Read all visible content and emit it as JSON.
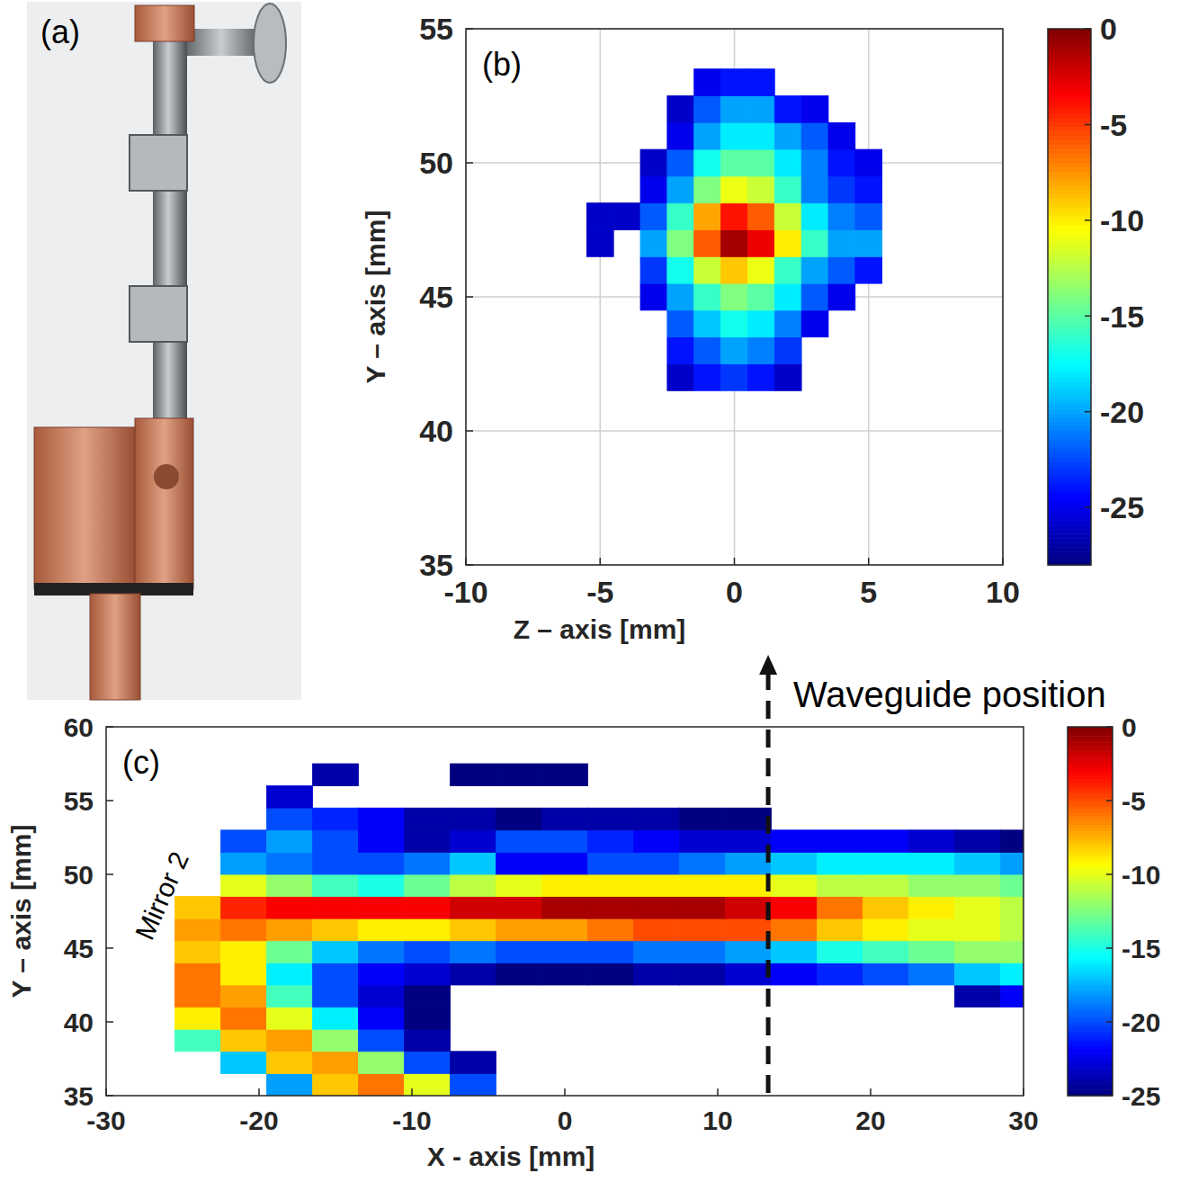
{
  "image_panel": {
    "label": "(a)"
  },
  "chart_data": [
    {
      "type": "heatmap",
      "panel_label": "(b)",
      "x_label": "Z – axis [mm]",
      "y_label": "Y – axis [mm]",
      "xlim": [
        -10,
        10
      ],
      "ylim": [
        35,
        55
      ],
      "xticks": [
        -10,
        -5,
        0,
        5,
        10
      ],
      "yticks": [
        35,
        40,
        45,
        50,
        55
      ],
      "grid": true,
      "x": [
        -5,
        -4,
        -3,
        -2,
        -1,
        0,
        1,
        2,
        3,
        4,
        5
      ],
      "y": [
        42,
        43,
        44,
        45,
        46,
        47,
        48,
        49,
        50,
        51,
        52,
        53
      ],
      "values": [
        [
          null,
          null,
          null,
          -26,
          -24,
          -23,
          -24,
          -26,
          null,
          null,
          null
        ],
        [
          null,
          null,
          null,
          -24,
          -22,
          -20,
          -21,
          -23,
          null,
          null,
          null
        ],
        [
          null,
          null,
          null,
          -22,
          -19,
          -17,
          -18,
          -21,
          -25,
          null,
          null
        ],
        [
          null,
          null,
          -25,
          -20,
          -16,
          -14,
          -15,
          -18,
          -22,
          -25,
          null
        ],
        [
          null,
          null,
          -23,
          -17,
          -12,
          -9,
          -11,
          -16,
          -20,
          -22,
          -24
        ],
        [
          -26,
          null,
          -20,
          -14,
          -6,
          -1,
          -3,
          -10,
          -16,
          -20,
          -20
        ],
        [
          -26,
          -26,
          -22,
          -16,
          -8,
          -4,
          -6,
          -12,
          -18,
          -21,
          -22
        ],
        [
          null,
          null,
          -25,
          -20,
          -14,
          -11,
          -12,
          -16,
          -21,
          -23,
          -24
        ],
        [
          null,
          null,
          -26,
          -22,
          -17,
          -15,
          -15,
          -18,
          -21,
          -24,
          -25
        ],
        [
          null,
          null,
          null,
          -25,
          -20,
          -18,
          -18,
          -20,
          -22,
          -25,
          null
        ],
        [
          null,
          null,
          null,
          -26,
          -22,
          -20,
          -20,
          -24,
          -25,
          null,
          null
        ],
        [
          null,
          null,
          null,
          null,
          -25,
          -24,
          -24,
          null,
          null,
          null,
          null
        ]
      ],
      "colorbar": {
        "range": [
          -28,
          0
        ],
        "ticks": [
          0,
          -5,
          -10,
          -15,
          -20,
          -25
        ]
      }
    },
    {
      "type": "heatmap",
      "panel_label": "(c)",
      "x_label": "X - axis [mm]",
      "y_label": "Y – axis [mm]",
      "xlim": [
        -30,
        30
      ],
      "ylim": [
        35,
        60
      ],
      "xticks": [
        -30,
        -20,
        -10,
        0,
        10,
        20,
        30
      ],
      "yticks": [
        35,
        40,
        45,
        50,
        55,
        60
      ],
      "grid": false,
      "x": [
        -27,
        -24,
        -21,
        -18,
        -15,
        -12,
        -9,
        -6,
        -3,
        0,
        3,
        6,
        9,
        12,
        15,
        18,
        21,
        24,
        27,
        30
      ],
      "y": [
        35.75,
        37.25,
        38.75,
        40.25,
        41.75,
        43.25,
        44.75,
        46.25,
        47.75,
        49.25,
        50.75,
        52.25,
        53.75,
        55.25,
        56.75
      ],
      "values": [
        [
          null,
          null,
          null,
          -18,
          -8,
          -6,
          -10,
          -20,
          null,
          null,
          null,
          null,
          null,
          null,
          null,
          null,
          null,
          null,
          null,
          null
        ],
        [
          null,
          null,
          -17,
          -8,
          -7,
          -12,
          -20,
          -24,
          null,
          null,
          null,
          null,
          null,
          null,
          null,
          null,
          null,
          null,
          null,
          null
        ],
        [
          null,
          -14,
          -8,
          -7,
          -12,
          -20,
          -24,
          null,
          null,
          null,
          null,
          null,
          null,
          null,
          null,
          null,
          null,
          null,
          null,
          null
        ],
        [
          null,
          -9,
          -6,
          -10,
          -16,
          -22,
          -25,
          null,
          null,
          null,
          null,
          null,
          null,
          null,
          null,
          null,
          null,
          null,
          null,
          null
        ],
        [
          null,
          -6,
          -7,
          -14,
          -20,
          -23,
          -25,
          null,
          null,
          null,
          null,
          null,
          null,
          null,
          null,
          null,
          null,
          null,
          -24,
          -22
        ],
        [
          null,
          -6,
          -9,
          -16,
          -20,
          -22,
          -23,
          -24,
          -25,
          -25,
          -25,
          -24,
          -24,
          -23,
          -22,
          -21,
          -20,
          -19,
          -17,
          -16
        ],
        [
          null,
          -8,
          -9,
          -13,
          -17,
          -19,
          -20,
          -19,
          -20,
          -20,
          -20,
          -19,
          -19,
          -18,
          -17,
          -15,
          -14,
          -13,
          -12,
          -12
        ],
        [
          null,
          -7,
          -6,
          -7,
          -8,
          -9,
          -9,
          -8,
          -7,
          -7,
          -6,
          -5,
          -5,
          -5,
          -6,
          -8,
          -9,
          -10,
          -10,
          -11
        ],
        [
          null,
          -8,
          -4,
          -3,
          -3,
          -3,
          -3,
          -2,
          -2,
          -1,
          -1,
          -1,
          -1,
          -2,
          -3,
          -6,
          -8,
          -9,
          -10,
          -11
        ],
        [
          null,
          null,
          -10,
          -12,
          -14,
          -15,
          -13,
          -11,
          -10,
          -9,
          -9,
          -9,
          -9,
          -9,
          -10,
          -11,
          -11,
          -12,
          -12,
          -13
        ],
        [
          null,
          null,
          -18,
          -19,
          -20,
          -20,
          -19,
          -17,
          -22,
          -22,
          -20,
          -20,
          -19,
          -18,
          -17,
          -16,
          -16,
          -16,
          -17,
          -18
        ],
        [
          null,
          null,
          -20,
          -18,
          -20,
          -22,
          -24,
          -23,
          -20,
          -20,
          -21,
          -22,
          -23,
          -23,
          -22,
          -22,
          -22,
          -23,
          -24,
          -25
        ],
        [
          null,
          null,
          null,
          -20,
          -21,
          -22,
          -24,
          -24,
          -25,
          -24,
          -24,
          -24,
          -25,
          -25,
          null,
          null,
          null,
          null,
          null,
          null
        ],
        [
          null,
          null,
          null,
          -23,
          null,
          null,
          null,
          null,
          null,
          null,
          null,
          null,
          null,
          null,
          null,
          null,
          null,
          null,
          null,
          null
        ],
        [
          null,
          null,
          null,
          null,
          -24,
          null,
          null,
          -25,
          -25,
          -25,
          null,
          null,
          null,
          null,
          null,
          null,
          null,
          null,
          null,
          null
        ]
      ],
      "colorbar": {
        "range": [
          -25,
          0
        ],
        "ticks": [
          0,
          -5,
          -10,
          -15,
          -20,
          -25
        ]
      },
      "annotations": [
        {
          "text": "Mirror 2",
          "x": -25.8,
          "y": 48.3
        },
        {
          "text": "Waveguide position",
          "x": 13.3
        }
      ]
    }
  ]
}
